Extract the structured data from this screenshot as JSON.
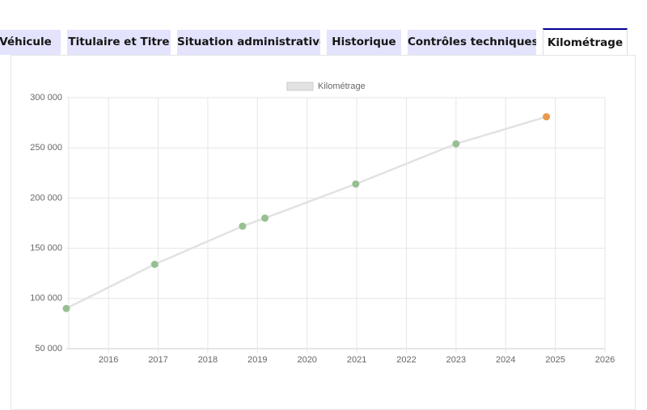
{
  "tabs": [
    {
      "label": "Véhicule",
      "active": false
    },
    {
      "label": "Titulaire et Titre",
      "active": false
    },
    {
      "label": "Situation administrative",
      "active": false
    },
    {
      "label": "Historique",
      "active": false
    },
    {
      "label": "Contrôles techniques",
      "active": false
    },
    {
      "label": "Kilométrage",
      "active": true
    }
  ],
  "chart_data": {
    "type": "line",
    "x": [
      2015.15,
      2016.93,
      2018.7,
      2019.15,
      2020.98,
      2023.0,
      2024.82
    ],
    "series": [
      {
        "name": "Kilométrage",
        "color": "#e2e2e2",
        "values": [
          90000,
          134000,
          172000,
          180000,
          214000,
          254000,
          281000
        ],
        "point_colors": [
          "#97bf92",
          "#97bf92",
          "#97bf92",
          "#97bf92",
          "#97bf92",
          "#97bf92",
          "#e8994a"
        ]
      }
    ],
    "xlim": [
      2015.15,
      2026
    ],
    "ylim": [
      50000,
      300000
    ],
    "xticks": [
      2016,
      2017,
      2018,
      2019,
      2020,
      2021,
      2022,
      2023,
      2024,
      2025,
      2026
    ],
    "yticks": [
      {
        "value": 50000,
        "label": "50 000"
      },
      {
        "value": 100000,
        "label": "100 000"
      },
      {
        "value": 150000,
        "label": "150 000"
      },
      {
        "value": 200000,
        "label": "200 000"
      },
      {
        "value": 250000,
        "label": "250 000"
      },
      {
        "value": 300000,
        "label": "300 000"
      }
    ],
    "grid": true,
    "legend": "top"
  }
}
